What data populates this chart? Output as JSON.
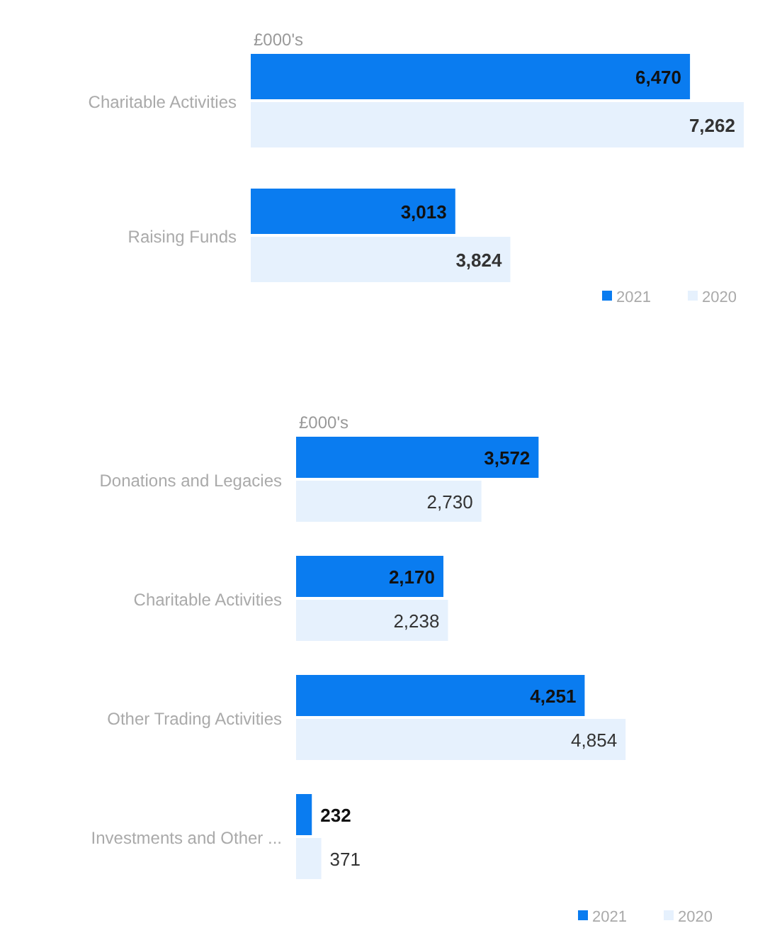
{
  "chart_data": [
    {
      "type": "bar",
      "orientation": "horizontal",
      "xlabel": "£000's",
      "categories": [
        "Charitable Activities",
        "Raising Funds"
      ],
      "series": [
        {
          "name": "2021",
          "color": "#0a7cf0",
          "values": [
            6470,
            3013
          ],
          "value_labels": [
            "6,470",
            "3,013"
          ]
        },
        {
          "name": "2020",
          "color": "#e6f1fd",
          "values": [
            7262,
            3824
          ],
          "value_labels": [
            "7,262",
            "3,824"
          ]
        }
      ],
      "legend": "bottom right",
      "grid": false
    },
    {
      "type": "bar",
      "orientation": "horizontal",
      "xlabel": "£000's",
      "categories": [
        "Donations and Legacies",
        "Charitable Activities",
        "Other Trading Activities",
        "Investments and Other ..."
      ],
      "series": [
        {
          "name": "2021",
          "color": "#0a7cf0",
          "values": [
            3572,
            2170,
            4251,
            232
          ],
          "value_labels": [
            "3,572",
            "2,170",
            "4,251",
            "232"
          ]
        },
        {
          "name": "2020",
          "color": "#e6f1fd",
          "values": [
            2730,
            2238,
            4854,
            371
          ],
          "value_labels": [
            "2,730",
            "2,238",
            "4,854",
            "371"
          ]
        }
      ],
      "legend": "bottom right",
      "grid": false
    }
  ]
}
